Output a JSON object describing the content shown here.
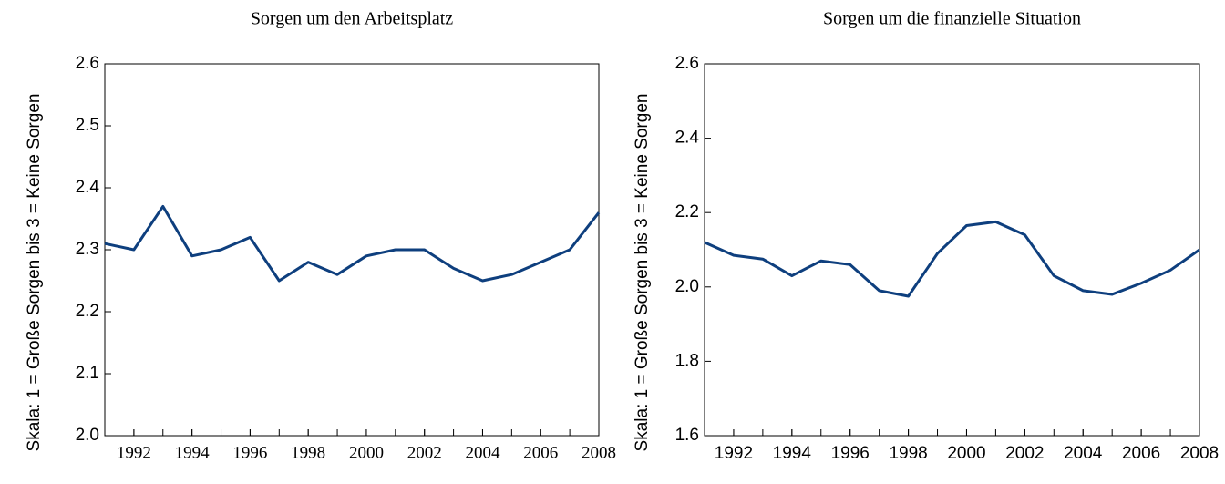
{
  "chart_data": [
    {
      "type": "line",
      "title": "Sorgen um den Arbeitsplatz",
      "y_label": "Skala: 1 = Große Sorgen bis 3 = Keine Sorgen",
      "x": [
        1991,
        1992,
        1993,
        1994,
        1995,
        1996,
        1997,
        1998,
        1999,
        2000,
        2001,
        2002,
        2003,
        2004,
        2005,
        2006,
        2007,
        2008
      ],
      "series": [
        {
          "name": "Sorgen um den Arbeitsplatz",
          "color": "#0e3f7e",
          "values": [
            2.31,
            2.3,
            2.37,
            2.29,
            2.3,
            2.32,
            2.25,
            2.28,
            2.26,
            2.29,
            2.3,
            2.3,
            2.27,
            2.25,
            2.26,
            2.28,
            2.3,
            2.36
          ]
        }
      ],
      "xlim": [
        1991,
        2008
      ],
      "xticks": [
        1992,
        1994,
        1996,
        1998,
        2000,
        2002,
        2004,
        2006,
        2008
      ],
      "ylim": [
        2.0,
        2.6
      ],
      "yticks": [
        {
          "value": 2.0,
          "label": "2.0"
        },
        2.1,
        2.2,
        2.3,
        2.4,
        2.5,
        {
          "value": 2.6,
          "label": "2.6"
        }
      ]
    },
    {
      "type": "line",
      "title": "Sorgen um die finanzielle Situation",
      "y_label": "Skala: 1 = Große Sorgen bis 3 = Keine Sorgen",
      "x": [
        1991,
        1992,
        1993,
        1994,
        1995,
        1996,
        1997,
        1998,
        1999,
        2000,
        2001,
        2002,
        2003,
        2004,
        2005,
        2006,
        2007,
        2008
      ],
      "series": [
        {
          "name": "Sorgen um die finanzielle Situation",
          "color": "#0e3f7e",
          "values": [
            2.12,
            2.085,
            2.075,
            2.03,
            2.07,
            2.06,
            1.99,
            1.975,
            2.09,
            2.165,
            2.175,
            2.14,
            2.03,
            1.99,
            1.98,
            2.01,
            2.045,
            2.1
          ]
        }
      ],
      "xlim": [
        1991,
        2008
      ],
      "xticks": [
        1992,
        1994,
        1996,
        1998,
        2000,
        2002,
        2004,
        2006,
        2008
      ],
      "ylim": [
        1.6,
        2.6
      ],
      "yticks": [
        1.6,
        1.8,
        {
          "value": 2.0,
          "label": "2.0"
        },
        2.2,
        2.4,
        {
          "value": 2.6,
          "label": "2.6"
        }
      ]
    }
  ]
}
